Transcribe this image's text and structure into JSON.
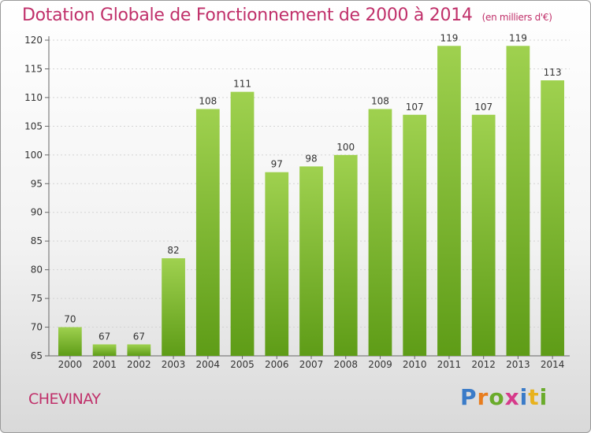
{
  "header": {
    "title": "Dotation Globale de Fonctionnement de 2000 à 2014",
    "unit": "(en milliers d'€)"
  },
  "footer": {
    "commune": "CHEVINAY",
    "logo": "Proxiti"
  },
  "colors": {
    "title": "#c0306a",
    "bar_top": "#9fd14f",
    "bar_bottom": "#5e9c17"
  },
  "chart_data": {
    "type": "bar",
    "categories": [
      "2000",
      "2001",
      "2002",
      "2003",
      "2004",
      "2005",
      "2006",
      "2007",
      "2008",
      "2009",
      "2010",
      "2011",
      "2012",
      "2013",
      "2014"
    ],
    "values": [
      70,
      67,
      67,
      82,
      108,
      111,
      97,
      98,
      100,
      108,
      107,
      119,
      107,
      119,
      113
    ],
    "title": "Dotation Globale de Fonctionnement de 2000 à 2014",
    "subtitle": "(en milliers d'€)",
    "xlabel": "",
    "ylabel": "",
    "ylim": [
      65,
      120
    ],
    "yticks": [
      65,
      70,
      75,
      80,
      85,
      90,
      95,
      100,
      105,
      110,
      115,
      120
    ],
    "grid": true,
    "legend": "none"
  }
}
